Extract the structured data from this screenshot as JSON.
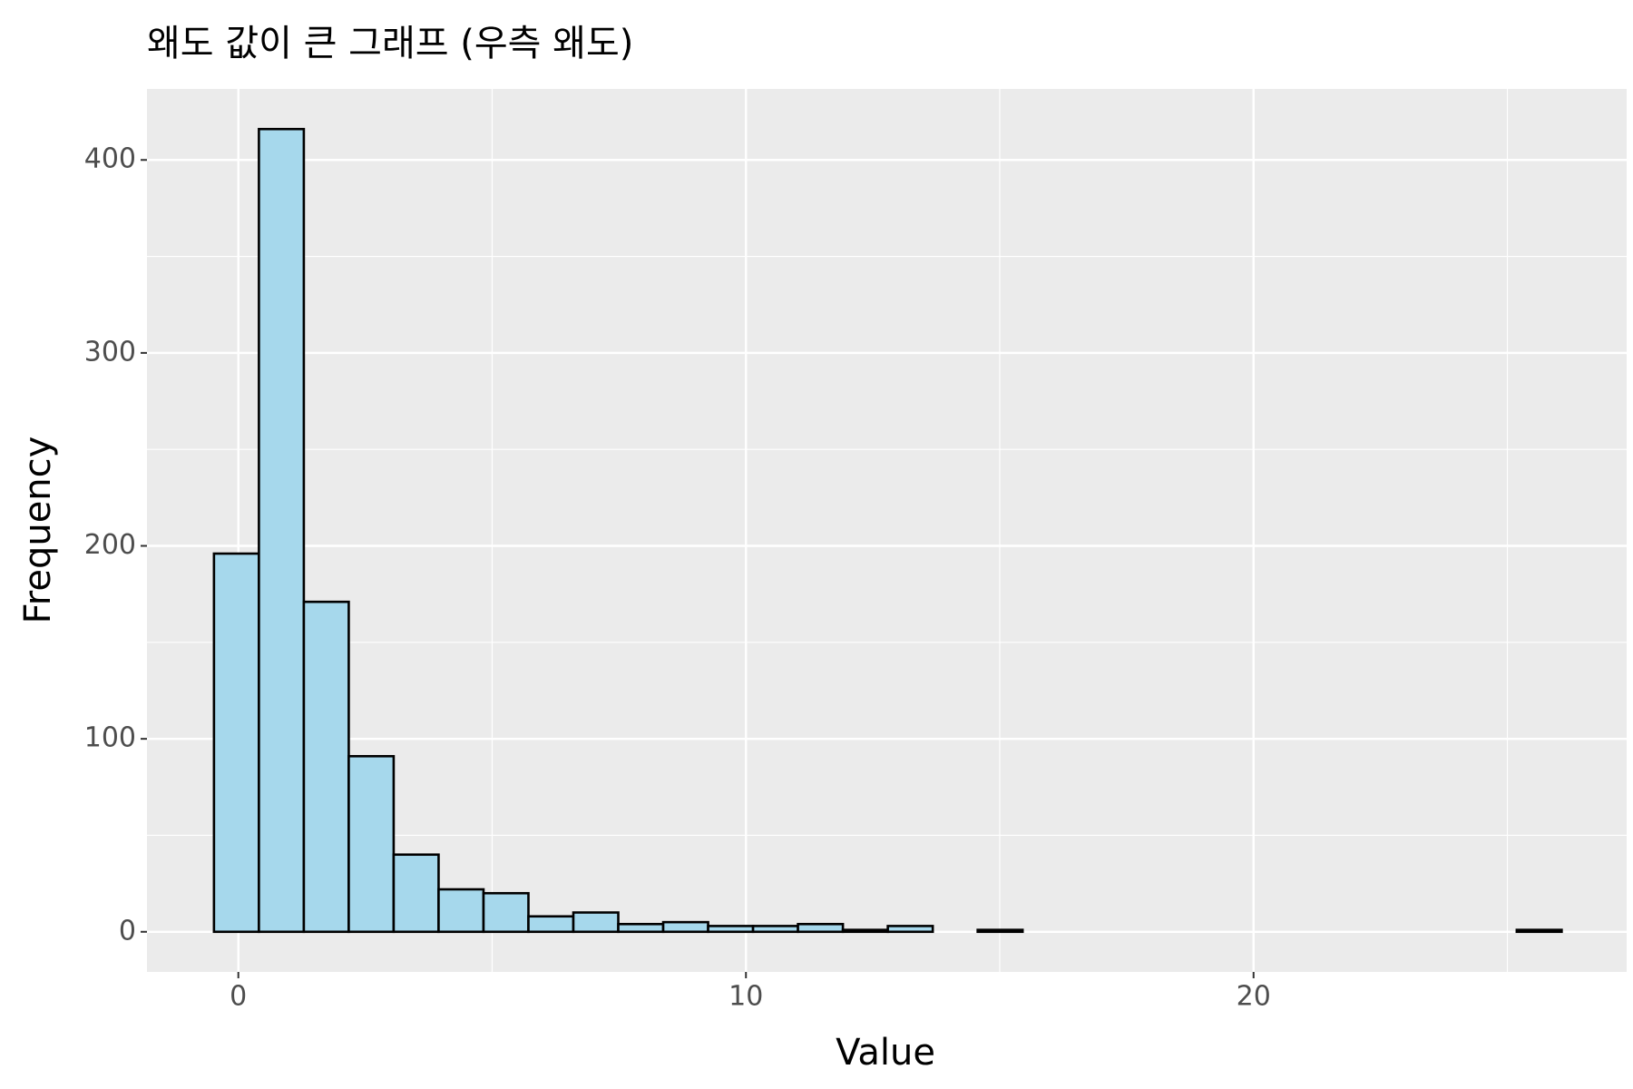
{
  "chart_data": {
    "type": "histogram",
    "title": "왜도 값이 큰 그래프 (우측 왜도)",
    "x_label": "Value",
    "y_label": "Frequency",
    "bins": [
      -0.48,
      0.405,
      1.29,
      2.175,
      3.06,
      3.945,
      4.83,
      5.715,
      6.6,
      7.485,
      8.37,
      9.255,
      10.14,
      11.025,
      11.91,
      12.795,
      13.68,
      14.565,
      15.45,
      16.335,
      17.22,
      18.105,
      18.99,
      19.875,
      20.76,
      21.645,
      22.53,
      23.415,
      24.3,
      25.185,
      26.07
    ],
    "values": [
      196,
      416,
      171,
      91,
      40,
      22,
      20,
      8,
      10,
      4,
      5,
      3,
      3,
      4,
      1,
      3,
      0,
      1,
      0,
      0,
      0,
      0,
      0,
      0,
      0,
      0,
      0,
      0,
      0,
      1
    ],
    "color": "#a6d8ec",
    "edgecolor": "#000000",
    "xlim": [
      -1.8,
      27.35
    ],
    "xticks": [
      0,
      10,
      20
    ],
    "ylim": [
      -20.8,
      436.8
    ],
    "yticks": [
      0,
      100,
      200,
      300,
      400
    ],
    "grid": true
  }
}
